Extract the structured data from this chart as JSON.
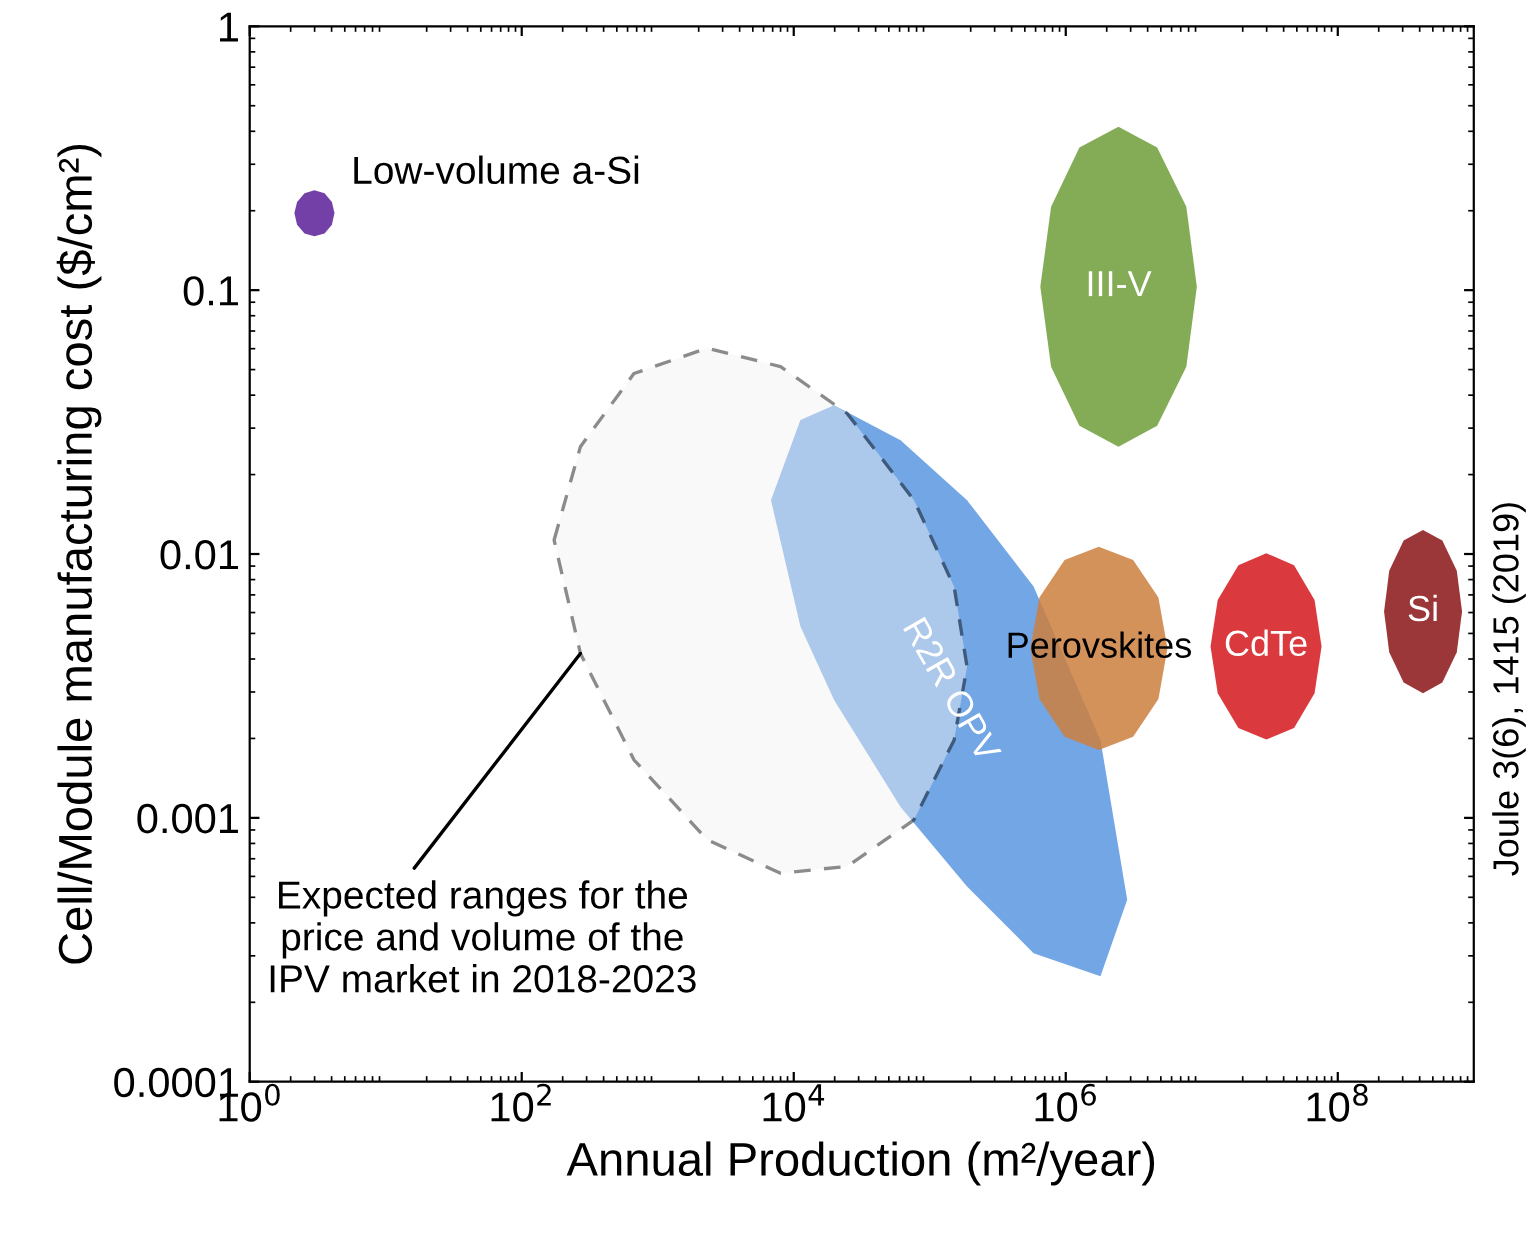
{
  "chart_data": {
    "type": "area",
    "xlabel": "Annual Production (m²/year)",
    "ylabel": "Cell/Module manufacturing cost ($/cm²)",
    "log": "xy",
    "xlim": [
      1,
      1000000000
    ],
    "ylim": [
      0.0001,
      1
    ],
    "xticks": [
      {
        "value": 1,
        "label": "10$^{0}$"
      },
      {
        "value": 100,
        "label": "10$^{2}$"
      },
      {
        "value": 10000,
        "label": "10$^{4}$"
      },
      {
        "value": 1000000,
        "label": "10$^{6}$"
      },
      {
        "value": 100000000,
        "label": "10$^{8}$"
      }
    ],
    "yticks": [
      0.0001,
      0.001,
      0.01,
      0.1,
      1
    ],
    "series": [
      {
        "name": "Low-volume a-Si",
        "color": "#5b1f99",
        "x": [
          2.13,
          2.23,
          2.53,
          2.99,
          3.55,
          4.02,
          4.2,
          4.02,
          3.55,
          2.99,
          2.53,
          2.23
        ],
        "values": [
          0.196,
          0.216,
          0.233,
          0.239,
          0.233,
          0.216,
          0.196,
          0.177,
          0.164,
          0.16,
          0.164,
          0.177
        ]
      },
      {
        "name": "III-V",
        "color": "#6e9e3a",
        "x": [
          650000,
          780000,
          1260000,
          2440000,
          4700000,
          7700000,
          9200000,
          7700000,
          4700000,
          2440000,
          1260000,
          780000
        ],
        "values": [
          0.103,
          0.207,
          0.347,
          0.416,
          0.347,
          0.207,
          0.103,
          0.0513,
          0.0306,
          0.0255,
          0.0306,
          0.0513
        ]
      },
      {
        "name": "R2R OPV",
        "color": "#5b97e0",
        "x": [
          6800,
          11200,
          19800,
          61000,
          188000,
          580000,
          1800000,
          2830000,
          1800000,
          580000,
          188000,
          61000,
          19800,
          11200
        ],
        "values": [
          0.016,
          0.0322,
          0.0366,
          0.027,
          0.016,
          0.00753,
          0.00197,
          0.000489,
          0.000251,
          0.000307,
          0.00055,
          0.0011,
          0.0028,
          0.00531
        ]
      },
      {
        "name": "Perovskites",
        "color": "#cd7f3e",
        "x": [
          550000,
          640000,
          980000,
          1750000,
          3130000,
          4800000,
          5600000,
          4800000,
          3130000,
          1750000,
          980000,
          640000
        ],
        "values": [
          0.00439,
          0.00684,
          0.0095,
          0.01065,
          0.0095,
          0.00684,
          0.00439,
          0.00282,
          0.00203,
          0.00181,
          0.00203,
          0.00282
        ]
      },
      {
        "name": "CdTe",
        "color": "#d4161b",
        "x": [
          11600000,
          13100000,
          18600000,
          29800000,
          47700000,
          67500000,
          76000000,
          67500000,
          47700000,
          29800000,
          18600000,
          13100000
        ],
        "values": [
          0.00446,
          0.0067,
          0.00906,
          0.01007,
          0.00906,
          0.0067,
          0.00446,
          0.00297,
          0.00219,
          0.00198,
          0.00219,
          0.00297
        ]
      },
      {
        "name": "Si",
        "color": "#8b1416",
        "x": [
          219000000,
          239000000,
          305000000,
          423000000,
          587000000,
          750000000,
          820000000,
          750000000,
          587000000,
          423000000,
          305000000,
          239000000
        ],
        "values": [
          0.00605,
          0.00864,
          0.01125,
          0.01233,
          0.01125,
          0.00864,
          0.00605,
          0.00424,
          0.00326,
          0.00297,
          0.00326,
          0.00424
        ]
      },
      {
        "color": "#f2f2f2",
        "line_style": "dashed",
        "x": [
          173,
          270,
          668,
          2310,
          8000,
          24700,
          76600,
          151000,
          188000,
          151000,
          76600,
          24700,
          8000,
          2310,
          668,
          270
        ],
        "values": [
          0.0113,
          0.0255,
          0.0483,
          0.0603,
          0.0513,
          0.0341,
          0.016,
          0.00753,
          0.00374,
          0.00197,
          0.000983,
          0.000655,
          0.000617,
          0.000826,
          0.00166,
          0.0042
        ]
      }
    ],
    "annotations": [
      {
        "text": "Expected ranges for the\nprice and volume of the\nIPV market in 2018-2023",
        "x": 270,
        "y": 0.0042
      },
      "Joule 3(6), 1415 (2019)"
    ]
  }
}
